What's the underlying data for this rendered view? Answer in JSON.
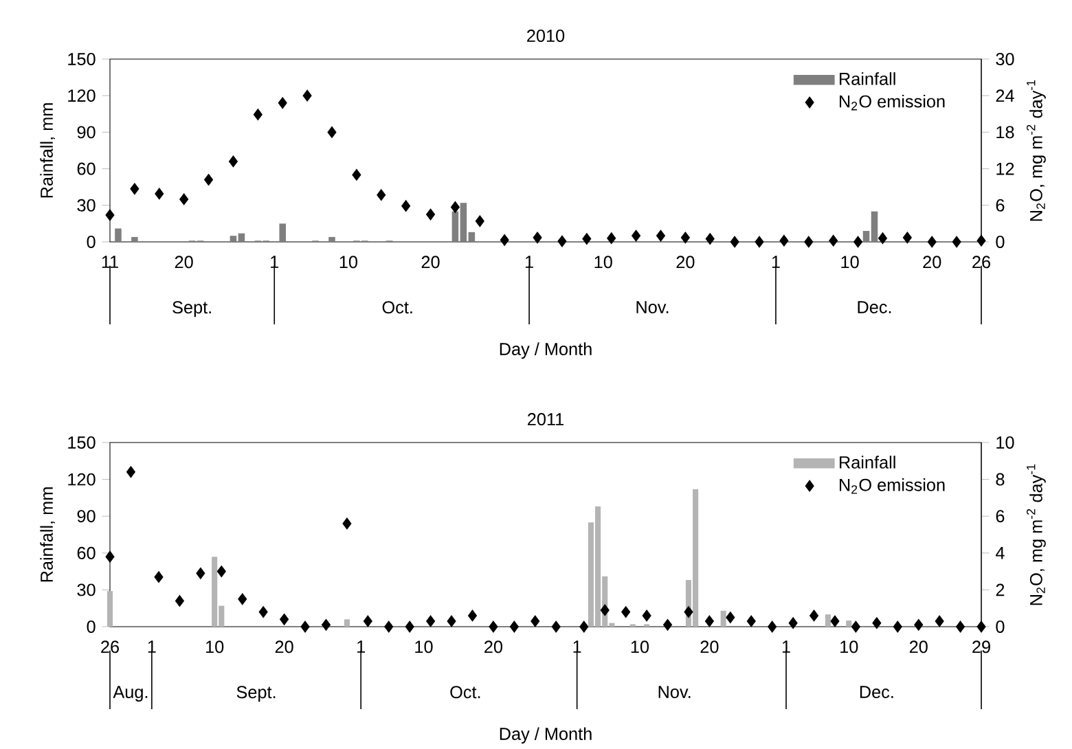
{
  "chart_data": [
    {
      "type": "bar",
      "title": "2010",
      "xlabel": "Day / Month",
      "ylabel": "Rainfall, mm",
      "y2label": "N$_{2}$O, mg m$^{-2}$ day$^{-1}$",
      "legend": "top right",
      "marker": "diamond",
      "xlim": [
        "2010-09-11",
        "2010-12-26"
      ],
      "xticks": [
        {
          "value": "2010-09-11",
          "label": "11"
        },
        {
          "value": "2010-09-20",
          "label": "20"
        },
        {
          "value": "2010-10-01",
          "label": "1"
        },
        {
          "value": "2010-10-10",
          "label": "10"
        },
        {
          "value": "2010-10-20",
          "label": "20"
        },
        {
          "value": "2010-11-01",
          "label": "1"
        },
        {
          "value": "2010-11-10",
          "label": "10"
        },
        {
          "value": "2010-11-20",
          "label": "20"
        },
        {
          "value": "2010-12-01",
          "label": "1"
        },
        {
          "value": "2010-12-10",
          "label": "10"
        },
        {
          "value": "2010-12-20",
          "label": "20"
        },
        {
          "value": "2010-12-26",
          "label": "26"
        }
      ],
      "x2lim": [
        "2010-09-11",
        "2010-12-26"
      ],
      "x2ticks": [
        {
          "value": "2010-09-21",
          "label": "Sept."
        },
        {
          "value": "2010-10-16",
          "label": "Oct."
        },
        {
          "value": "2010-11-16",
          "label": "Nov."
        },
        {
          "value": "2010-12-13",
          "label": "Dec."
        }
      ],
      "ylim": [
        0,
        150
      ],
      "yticks": [
        0,
        30,
        60,
        90,
        120,
        150
      ],
      "y2lim": [
        0,
        30
      ],
      "y2ticks": [
        0,
        6,
        12,
        18,
        24,
        30
      ],
      "series": [
        {
          "name": "Rainfall",
          "color": "#7f7f7f",
          "x": [
            "2010-09-12",
            "2010-09-14",
            "2010-09-21",
            "2010-09-22",
            "2010-09-26",
            "2010-09-27",
            "2010-09-29",
            "2010-09-30",
            "2010-10-02",
            "2010-10-06",
            "2010-10-08",
            "2010-10-11",
            "2010-10-12",
            "2010-10-15",
            "2010-10-23",
            "2010-10-24",
            "2010-10-25",
            "2010-12-12",
            "2010-12-13"
          ],
          "values": [
            11,
            4,
            1,
            1,
            5,
            7,
            1,
            1,
            15,
            1,
            4,
            1,
            1,
            1,
            25,
            32,
            8,
            9,
            25
          ]
        },
        {
          "name": "N$_{2}$O emission",
          "type": "scatter",
          "axis": "y2",
          "color": "#000000",
          "x": [
            "2010-09-11",
            "2010-09-14",
            "2010-09-17",
            "2010-09-20",
            "2010-09-23",
            "2010-09-26",
            "2010-09-29",
            "2010-10-02",
            "2010-10-05",
            "2010-10-08",
            "2010-10-11",
            "2010-10-14",
            "2010-10-17",
            "2010-10-20",
            "2010-10-23",
            "2010-10-26",
            "2010-10-29",
            "2010-11-02",
            "2010-11-05",
            "2010-11-08",
            "2010-11-11",
            "2010-11-14",
            "2010-11-17",
            "2010-11-20",
            "2010-11-23",
            "2010-11-26",
            "2010-11-29",
            "2010-12-02",
            "2010-12-05",
            "2010-12-08",
            "2010-12-11",
            "2010-12-14",
            "2010-12-17",
            "2010-12-20",
            "2010-12-23",
            "2010-12-26"
          ],
          "values": [
            4.4,
            8.7,
            7.9,
            7.0,
            10.2,
            13.2,
            20.9,
            22.8,
            24.0,
            18.0,
            11.0,
            7.7,
            5.9,
            4.5,
            5.7,
            3.4,
            0.3,
            0.7,
            0.1,
            0.5,
            0.6,
            1.0,
            1.0,
            0.7,
            0.5,
            0,
            0,
            0.2,
            0,
            0.2,
            0,
            0.6,
            0.7,
            0,
            0,
            0.2
          ]
        }
      ]
    },
    {
      "type": "bar",
      "title": "2011",
      "xlabel": "Day / Month",
      "ylabel": "Rainfall, mm",
      "y2label": "N$_{2}$O, mg m$^{-2}$ day$^{-1}$",
      "legend": "top right",
      "marker": "diamond",
      "xlim": [
        "2011-08-26",
        "2011-12-29"
      ],
      "xticks": [
        {
          "value": "2011-08-26",
          "label": "26"
        },
        {
          "value": "2011-09-01",
          "label": "1"
        },
        {
          "value": "2011-09-10",
          "label": "10"
        },
        {
          "value": "2011-09-20",
          "label": "20"
        },
        {
          "value": "2011-10-01",
          "label": "1"
        },
        {
          "value": "2011-10-10",
          "label": "10"
        },
        {
          "value": "2011-10-20",
          "label": "20"
        },
        {
          "value": "2011-11-01",
          "label": "1"
        },
        {
          "value": "2011-11-10",
          "label": "10"
        },
        {
          "value": "2011-11-20",
          "label": "20"
        },
        {
          "value": "2011-12-01",
          "label": "1"
        },
        {
          "value": "2011-12-10",
          "label": "10"
        },
        {
          "value": "2011-12-20",
          "label": "20"
        },
        {
          "value": "2011-12-29",
          "label": "29"
        }
      ],
      "x2lim": [
        "2011-08-26",
        "2011-12-29"
      ],
      "x2ticks": [
        {
          "value": "2011-08-29",
          "label": "Aug."
        },
        {
          "value": "2011-09-16",
          "label": "Sept."
        },
        {
          "value": "2011-10-16",
          "label": "Oct."
        },
        {
          "value": "2011-11-15",
          "label": "Nov."
        },
        {
          "value": "2011-12-14",
          "label": "Dec."
        }
      ],
      "ylim": [
        0,
        150
      ],
      "yticks": [
        0,
        30,
        60,
        90,
        120,
        150
      ],
      "y2lim": [
        0,
        10
      ],
      "y2ticks": [
        0,
        2,
        4,
        6,
        8,
        10
      ],
      "series": [
        {
          "name": "Rainfall",
          "color": "#b4b4b4",
          "x": [
            "2011-08-26",
            "2011-09-10",
            "2011-09-11",
            "2011-09-29",
            "2011-11-03",
            "2011-11-04",
            "2011-11-05",
            "2011-11-06",
            "2011-11-09",
            "2011-11-11",
            "2011-11-17",
            "2011-11-18",
            "2011-11-22",
            "2011-12-07",
            "2011-12-10"
          ],
          "values": [
            29,
            57,
            17,
            6,
            85,
            98,
            41,
            3,
            2,
            2,
            38,
            112,
            13,
            10,
            5
          ]
        },
        {
          "name": "N$_{2}$O emission",
          "type": "scatter",
          "axis": "y2",
          "color": "#000000",
          "x": [
            "2011-08-26",
            "2011-08-29",
            "2011-09-02",
            "2011-09-05",
            "2011-09-08",
            "2011-09-11",
            "2011-09-14",
            "2011-09-17",
            "2011-09-20",
            "2011-09-23",
            "2011-09-26",
            "2011-09-29",
            "2011-10-02",
            "2011-10-05",
            "2011-10-08",
            "2011-10-11",
            "2011-10-14",
            "2011-10-17",
            "2011-10-20",
            "2011-10-23",
            "2011-10-26",
            "2011-10-29",
            "2011-11-02",
            "2011-11-05",
            "2011-11-08",
            "2011-11-11",
            "2011-11-14",
            "2011-11-17",
            "2011-11-20",
            "2011-11-23",
            "2011-11-26",
            "2011-11-29",
            "2011-12-02",
            "2011-12-05",
            "2011-12-08",
            "2011-12-11",
            "2011-12-14",
            "2011-12-17",
            "2011-12-20",
            "2011-12-23",
            "2011-12-26",
            "2011-12-29"
          ],
          "values": [
            3.8,
            8.4,
            2.7,
            1.4,
            2.9,
            3.0,
            1.5,
            0.8,
            0.4,
            0,
            0.1,
            5.6,
            0.3,
            0,
            0,
            0.3,
            0.3,
            0.6,
            0,
            0,
            0.3,
            0,
            0,
            0.9,
            0.8,
            0.6,
            0.1,
            0.8,
            0.3,
            0.5,
            0.3,
            0,
            0.2,
            0.6,
            0.3,
            0,
            0.2,
            0,
            0.1,
            0.3,
            0,
            0
          ]
        }
      ]
    }
  ]
}
